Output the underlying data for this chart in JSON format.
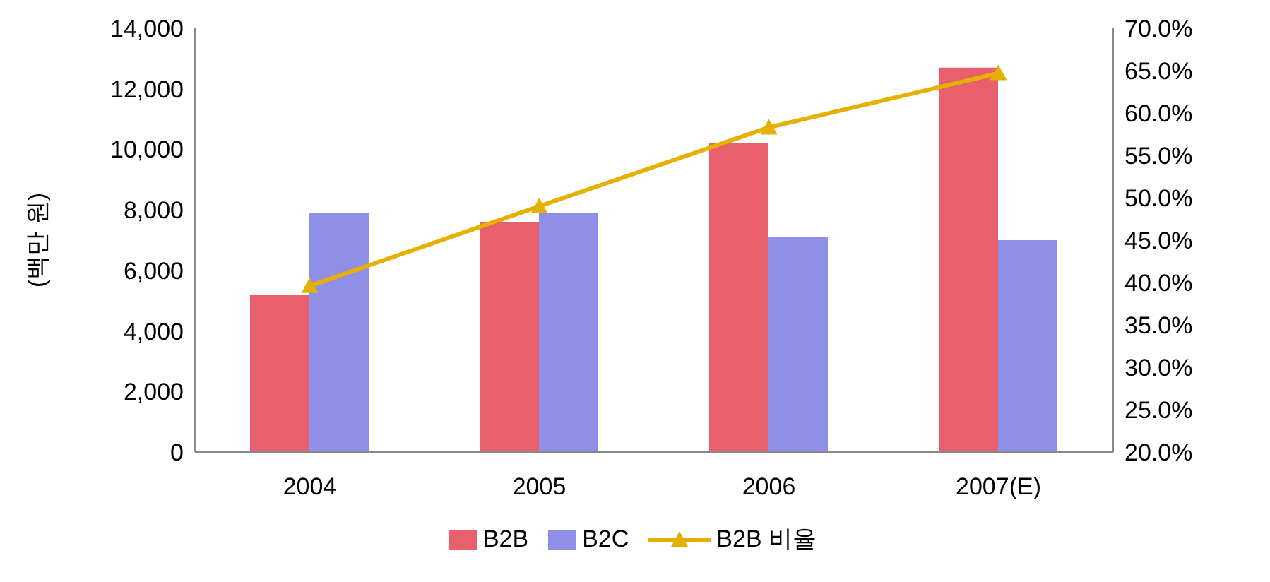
{
  "chart_data": {
    "type": "bar",
    "ylabel": "(백만 원)",
    "categories": [
      "2004",
      "2005",
      "2006",
      "2007(E)"
    ],
    "series": [
      {
        "name": "B2B",
        "color": "#e8606c",
        "values": [
          5200,
          7600,
          10200,
          12700
        ]
      },
      {
        "name": "B2C",
        "color": "#8f8fe8",
        "values": [
          7900,
          7900,
          7100,
          7000
        ]
      },
      {
        "name": "B2B 비율",
        "type": "line",
        "axis": "y2",
        "color": "#e6b000",
        "marker": "triangle",
        "values": [
          39.6,
          49.0,
          58.3,
          64.7
        ]
      }
    ],
    "ylim": [
      0,
      14000
    ],
    "yticks": [
      {
        "value": 0,
        "label": "0"
      },
      {
        "value": 2000,
        "label": "2,000"
      },
      {
        "value": 4000,
        "label": "4,000"
      },
      {
        "value": 6000,
        "label": "6,000"
      },
      {
        "value": 8000,
        "label": "8,000"
      },
      {
        "value": 10000,
        "label": "10,000"
      },
      {
        "value": 12000,
        "label": "12,000"
      },
      {
        "value": 14000,
        "label": "14,000"
      }
    ],
    "y2lim": [
      20,
      70
    ],
    "y2ticks": [
      {
        "value": 20,
        "label": "20.0%"
      },
      {
        "value": 25,
        "label": "25.0%"
      },
      {
        "value": 30,
        "label": "30.0%"
      },
      {
        "value": 35,
        "label": "35.0%"
      },
      {
        "value": 40,
        "label": "40.0%"
      },
      {
        "value": 45,
        "label": "45.0%"
      },
      {
        "value": 50,
        "label": "50.0%"
      },
      {
        "value": 55,
        "label": "55.0%"
      },
      {
        "value": 60,
        "label": "60.0%"
      },
      {
        "value": 65,
        "label": "65.0%"
      },
      {
        "value": 70,
        "label": "70.0%"
      }
    ],
    "grid": false,
    "legend": "bottom"
  }
}
